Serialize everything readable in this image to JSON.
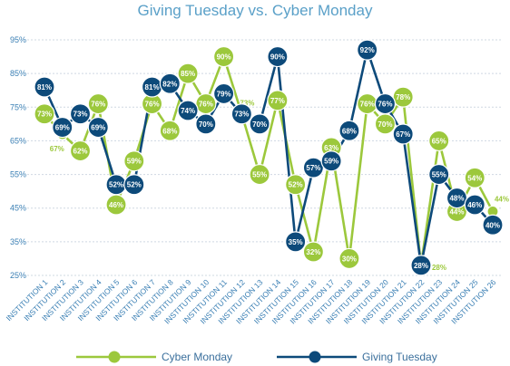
{
  "chart_data": {
    "type": "line",
    "title": "Giving Tuesday vs. Cyber Monday",
    "yticks": [
      "25%",
      "35%",
      "45%",
      "55%",
      "65%",
      "75%",
      "85%",
      "95%"
    ],
    "ylim": [
      25,
      95
    ],
    "grid": true,
    "legend_position": "bottom",
    "categories": [
      "INSTITUTION 1",
      "INSTITUTION 2",
      "INSTITUTION 3",
      "INSTITUTION 4",
      "INSTITUTION 5",
      "INSTITUTION 6",
      "INSTITUTION 7",
      "INSTITUTION 8",
      "INSTITUTION 9",
      "INSTITUTION 10",
      "INSTITUTION 11",
      "INSTITUTION 12",
      "INSTITUTION 13",
      "INSTITUTION 14",
      "INSTITUTION 15",
      "INSTITUTION 16",
      "INSTITUTION 17",
      "INSTITUTION 18",
      "INSTITUTION 19",
      "INSTITUTION 20",
      "INSTITUTION 21",
      "INSTITUTION 22",
      "INSTITUTION 23",
      "INSTITUTION 24",
      "INSTITUTION 25",
      "INSTITUTION 26"
    ],
    "series": [
      {
        "name": "Cyber Monday",
        "color": "#9cc83c",
        "values": [
          73,
          67,
          62,
          76,
          46,
          59,
          76,
          68,
          85,
          76,
          90,
          73,
          55,
          77,
          52,
          32,
          63,
          30,
          76,
          70,
          78,
          28,
          65,
          44,
          54,
          44
        ],
        "labels": [
          "73%",
          "67%",
          "62%",
          "76%",
          "46%",
          "59%",
          "76%",
          "68%",
          "85%",
          "76%",
          "90%",
          "73%",
          "55%",
          "77%",
          "52%",
          "32%",
          "63%",
          "30%",
          "76%",
          "70%",
          "78%",
          "28%",
          "65%",
          "44%",
          "54%",
          "44%"
        ]
      },
      {
        "name": "Giving Tuesday",
        "color": "#0d4a7a",
        "values": [
          81,
          69,
          73,
          69,
          52,
          52,
          81,
          82,
          74,
          70,
          79,
          73,
          70,
          90,
          35,
          57,
          59,
          68,
          92,
          76,
          67,
          28,
          55,
          48,
          46,
          40
        ],
        "labels": [
          "81%",
          "69%",
          "73%",
          "69%",
          "52%",
          "52%",
          "81%",
          "82%",
          "74%",
          "70%",
          "79%",
          "73%",
          "70%",
          "90%",
          "35%",
          "57%",
          "59%",
          "68%",
          "92%",
          "76%",
          "67%",
          "28%",
          "55%",
          "48%",
          "46%",
          "40%"
        ]
      }
    ]
  }
}
